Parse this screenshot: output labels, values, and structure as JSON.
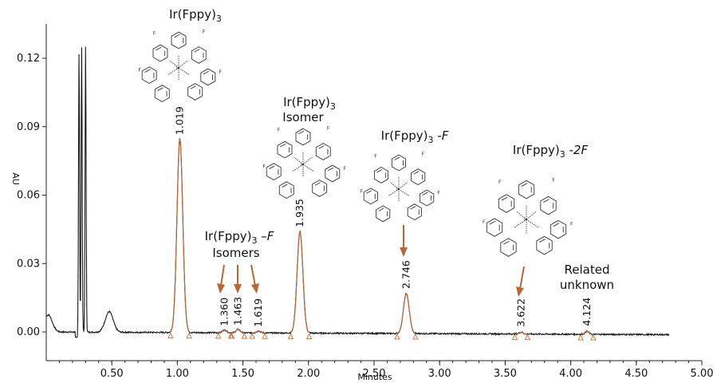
{
  "chart_data": {
    "type": "line",
    "xlabel": "Minutes",
    "ylabel": "AU",
    "xlim": [
      0,
      5.0
    ],
    "ylim": [
      -0.006,
      0.135
    ],
    "x_ticks": [
      "0.50",
      "1.00",
      "1.50",
      "2.00",
      "2.50",
      "3.00",
      "3.50",
      "4.00",
      "4.50",
      "5.00"
    ],
    "x_tick_values": [
      0.5,
      1.0,
      1.5,
      2.0,
      2.5,
      3.0,
      3.5,
      4.0,
      4.5,
      5.0
    ],
    "y_ticks": [
      "0.00",
      "0.03",
      "0.06",
      "0.09",
      "0.12"
    ],
    "y_tick_values": [
      0.0,
      0.03,
      0.06,
      0.09,
      0.12
    ],
    "grid": false,
    "peaks": [
      {
        "rt": 1.019,
        "label": "1.019",
        "height": 0.085,
        "width": 0.022
      },
      {
        "rt": 1.36,
        "label": "1.360",
        "height": 0.0012,
        "width": 0.015
      },
      {
        "rt": 1.463,
        "label": "1.463",
        "height": 0.0015,
        "width": 0.015
      },
      {
        "rt": 1.619,
        "label": "1.619",
        "height": 0.0008,
        "width": 0.015
      },
      {
        "rt": 1.935,
        "label": "1.935",
        "height": 0.0445,
        "width": 0.022
      },
      {
        "rt": 2.746,
        "label": "2.746",
        "height": 0.0175,
        "width": 0.022
      },
      {
        "rt": 3.622,
        "label": "3.622",
        "height": 0.0008,
        "width": 0.015
      },
      {
        "rt": 4.124,
        "label": "4.124",
        "height": 0.0012,
        "width": 0.015
      }
    ],
    "solvent_front": [
      {
        "rt": 0.25,
        "height": 0.126
      },
      {
        "rt": 0.27,
        "height": 0.125
      },
      {
        "rt": 0.3,
        "height": 0.125
      }
    ],
    "early_bumps": [
      {
        "rt": 0.015,
        "height": 0.0075
      },
      {
        "rt": 0.48,
        "height": 0.009
      }
    ],
    "annotations": [
      {
        "id": "main",
        "line1": "Ir(Fppy)",
        "sub": "3",
        "suffix": "",
        "line2": ""
      },
      {
        "id": "isomer",
        "line1": "Ir(Fppy)",
        "sub": "3",
        "suffix": "",
        "line2": "Isomer"
      },
      {
        "id": "minusF",
        "line1": "Ir(Fppy)",
        "sub": "3",
        "suffix": " -F",
        "line2": ""
      },
      {
        "id": "minusFiso",
        "line1": "Ir(Fppy)",
        "sub": "3",
        "suffix": " –F",
        "line2": "Isomers"
      },
      {
        "id": "minus2F",
        "line1": "Ir(Fppy)",
        "sub": "3",
        "suffix": " -2F",
        "line2": ""
      },
      {
        "id": "related",
        "line1": "Related",
        "sub": "",
        "suffix": "",
        "line2": "unknown"
      }
    ],
    "colors": {
      "trace": "#1a1a1a",
      "peak_baseline": "#b5683a",
      "arrows": "#b5683a"
    }
  }
}
